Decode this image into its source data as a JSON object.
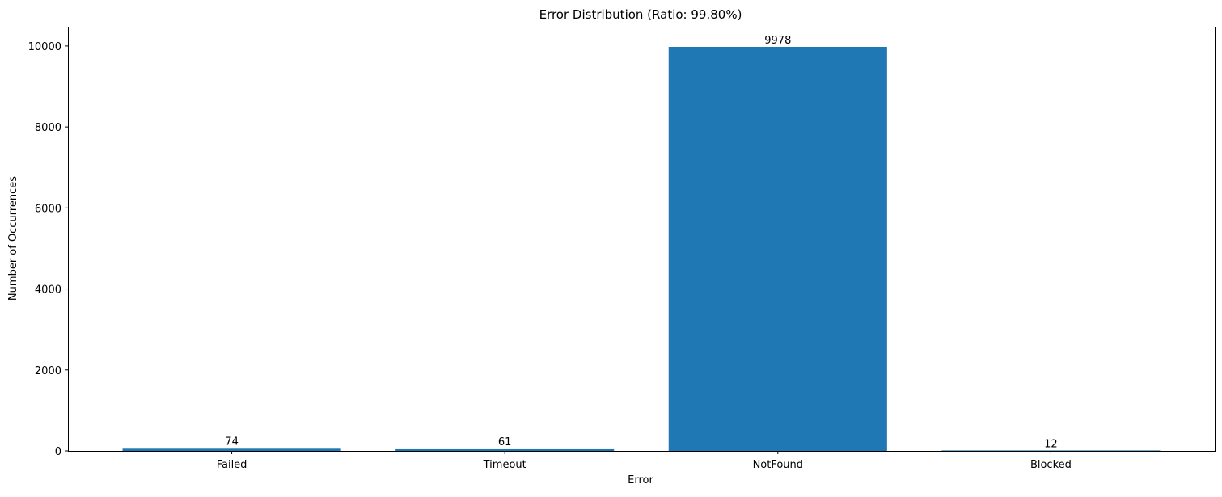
{
  "chart_data": {
    "type": "bar",
    "title": "Error Distribution (Ratio: 99.80%)",
    "xlabel": "Error",
    "ylabel": "Number of Occurrences",
    "categories": [
      "Failed",
      "Timeout",
      "NotFound",
      "Blocked"
    ],
    "values": [
      74,
      61,
      9978,
      12
    ],
    "value_labels": [
      "74",
      "61",
      "9978",
      "12"
    ],
    "ylim": [
      0,
      10477
    ],
    "yticks": [
      0,
      2000,
      4000,
      6000,
      8000,
      10000
    ],
    "ytick_labels": [
      "0",
      "2000",
      "4000",
      "6000",
      "8000",
      "10000"
    ],
    "grid": false,
    "bar_color": "#1f77b4"
  }
}
